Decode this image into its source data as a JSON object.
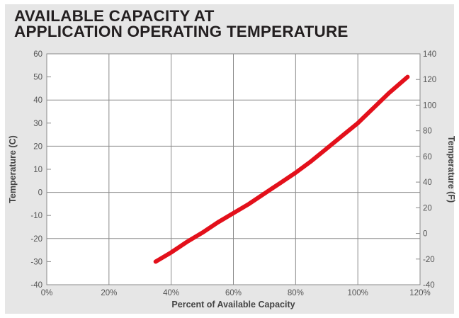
{
  "chart_data": {
    "type": "line",
    "title_lines": [
      "AVAILABLE CAPACITY AT",
      "APPLICATION OPERATING TEMPERATURE"
    ],
    "xlabel": "Percent of Available Capacity",
    "ylabel_left": "Temperature (C)",
    "ylabel_right": "Temperature (F)",
    "x_unit": "%",
    "xlim": [
      0,
      120
    ],
    "x_ticks": [
      0,
      20,
      40,
      60,
      80,
      100,
      120
    ],
    "ylim_left": [
      -40,
      60
    ],
    "y_ticks_left": [
      -40,
      -30,
      -20,
      -10,
      0,
      10,
      20,
      30,
      40,
      50,
      60
    ],
    "ylim_right": [
      -40,
      140
    ],
    "y_ticks_right": [
      -40,
      -20,
      0,
      20,
      40,
      60,
      80,
      100,
      120,
      140
    ],
    "grid": true,
    "line_color": "#e3101b",
    "series": [
      {
        "x": [
          35,
          40,
          45,
          50,
          55,
          60,
          65,
          70,
          75,
          80,
          85,
          90,
          95,
          100,
          105,
          110,
          116
        ],
        "y": [
          -30,
          -26,
          -21.5,
          -17.5,
          -13,
          -9,
          -5,
          -0.5,
          4,
          8.5,
          13.5,
          19,
          24.5,
          30,
          36.5,
          43,
          50
        ]
      }
    ]
  }
}
